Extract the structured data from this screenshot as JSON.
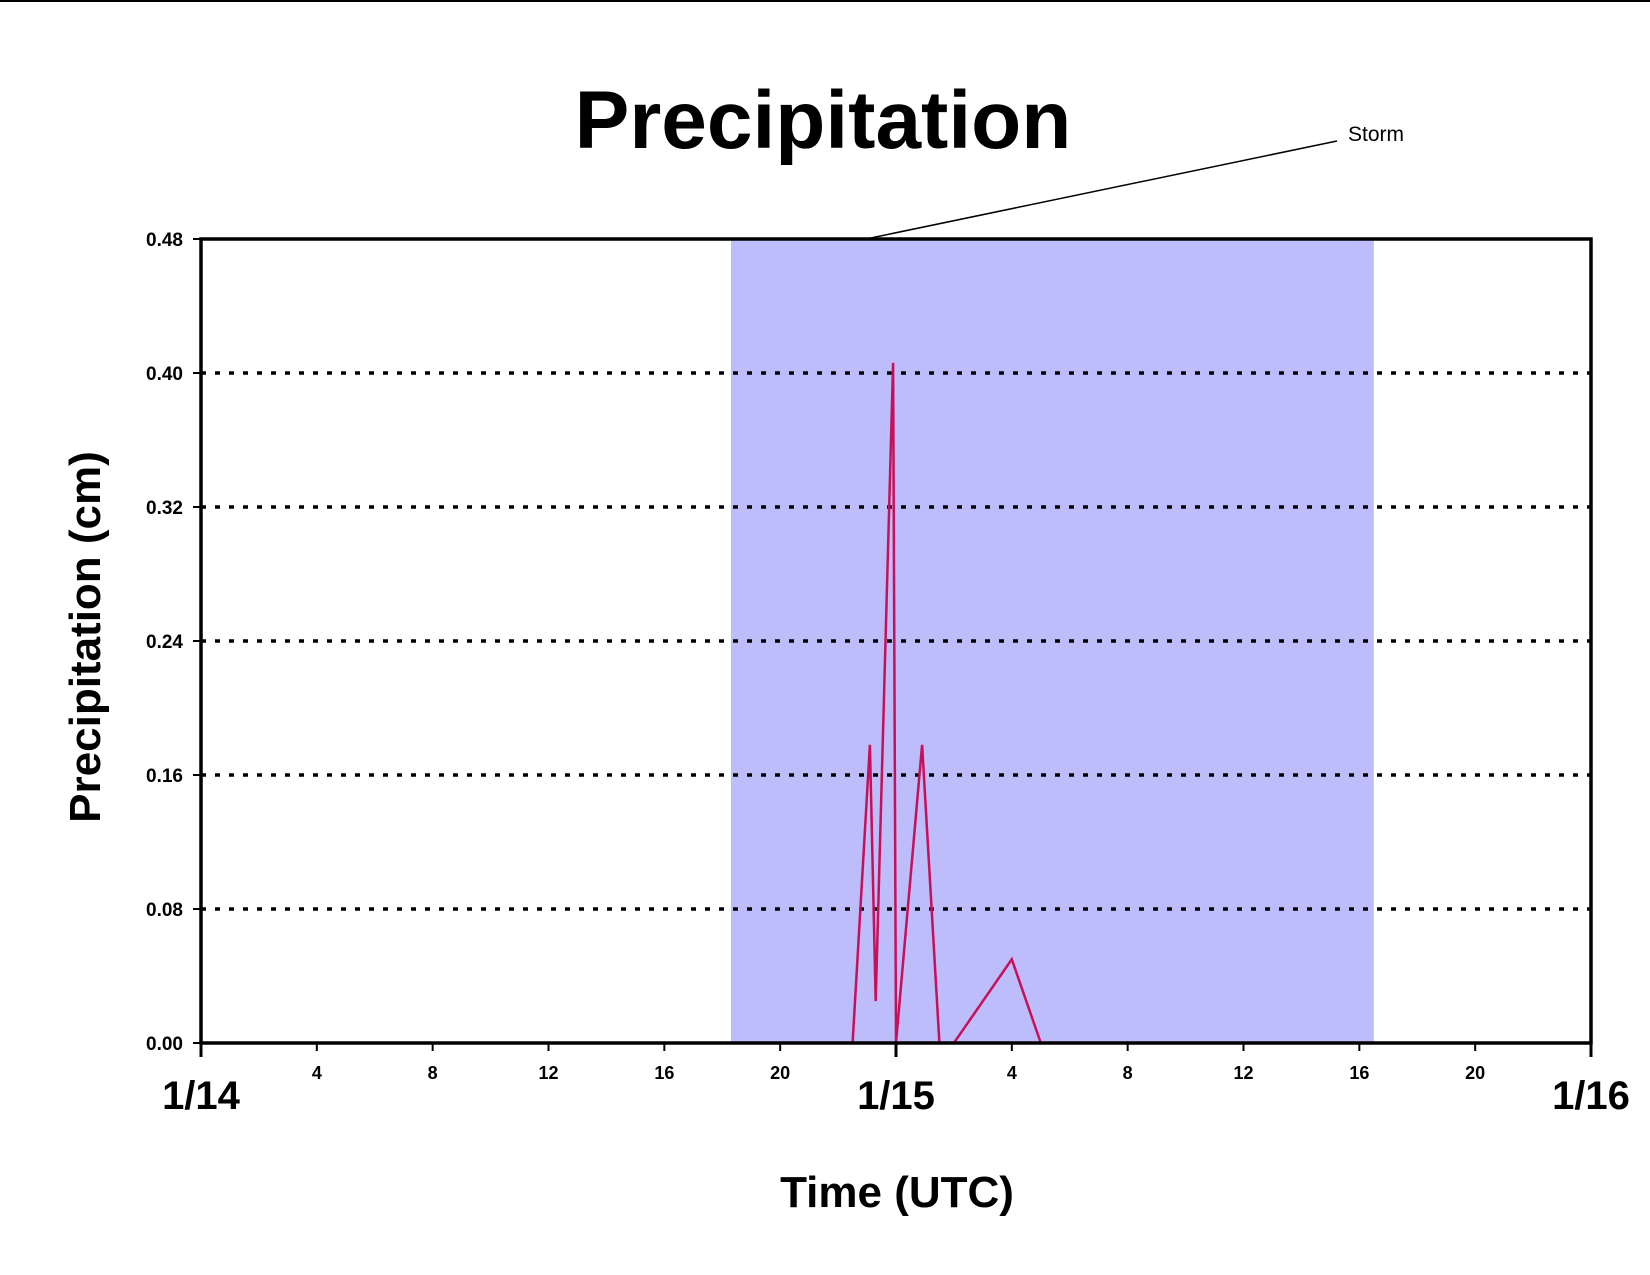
{
  "chart_data": {
    "type": "line",
    "title": "Precipitation",
    "xlabel": "Time (UTC)",
    "ylabel": "Precipitation (cm)",
    "ylim": [
      0,
      0.48
    ],
    "xlim": [
      "1/14 00:00",
      "1/16 00:00"
    ],
    "x_unit": "hours since 1/14 00:00 UTC",
    "yticks": [
      "0.00",
      "0.08",
      "0.16",
      "0.24",
      "0.32",
      "0.40",
      "0.48"
    ],
    "x_hour_ticks": [
      {
        "h": 4,
        "label": "4"
      },
      {
        "h": 8,
        "label": "8"
      },
      {
        "h": 12,
        "label": "12"
      },
      {
        "h": 16,
        "label": "16"
      },
      {
        "h": 20,
        "label": "20"
      },
      {
        "h": 28,
        "label": "4"
      },
      {
        "h": 32,
        "label": "8"
      },
      {
        "h": 36,
        "label": "12"
      },
      {
        "h": 40,
        "label": "16"
      },
      {
        "h": 44,
        "label": "20"
      }
    ],
    "x_day_ticks": [
      {
        "h": 0,
        "label": "1/14"
      },
      {
        "h": 24,
        "label": "1/15"
      },
      {
        "h": 48,
        "label": "1/16"
      }
    ],
    "grid": "horizontal dotted",
    "shaded_region": {
      "label": "Storm",
      "x_start": 18.3,
      "x_end": 40.5,
      "color": "#bdbdfb"
    },
    "series": [
      {
        "color": "#c8105a",
        "x": [
          0,
          22.5,
          23.1,
          23.3,
          23.9,
          24.0,
          24.0,
          24.9,
          25.5,
          26.0,
          28.0,
          29.0,
          48
        ],
        "y": [
          0,
          0,
          0.178,
          0.025,
          0.406,
          0.0,
          0.0,
          0.178,
          0.0,
          0.0,
          0.05,
          0.0,
          0
        ]
      }
    ]
  }
}
